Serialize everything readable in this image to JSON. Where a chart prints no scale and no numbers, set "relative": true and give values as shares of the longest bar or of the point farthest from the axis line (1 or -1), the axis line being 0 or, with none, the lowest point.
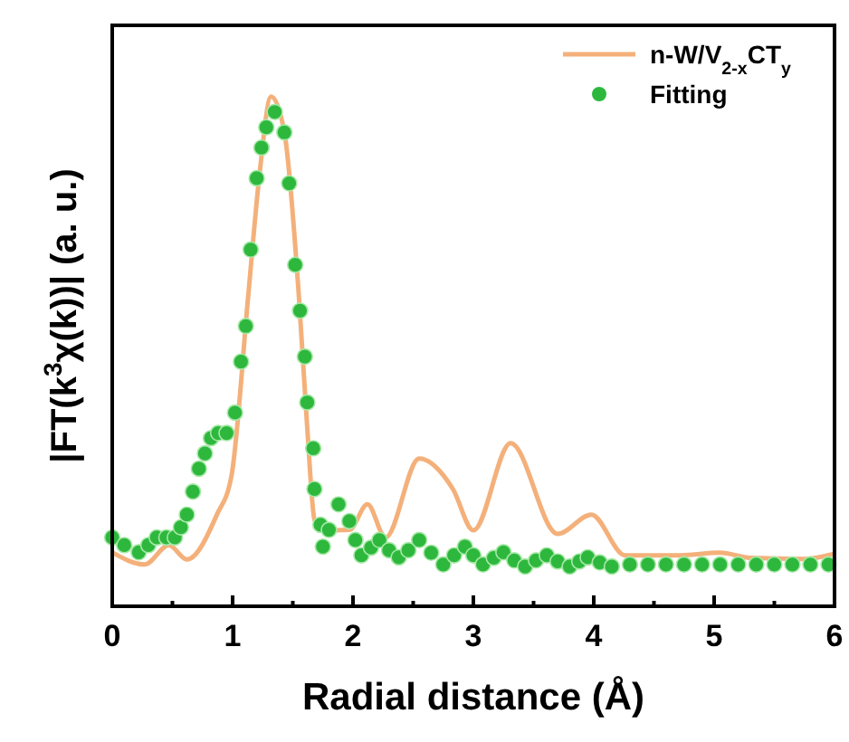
{
  "chart_data": {
    "type": "line",
    "relative": true,
    "xlabel": "Radial distance (Å)",
    "ylabel": "|FT(k$^{3}$χ(k))| (a. u.)",
    "xlim": [
      0,
      6
    ],
    "xticks": [
      0,
      {
        "value": 0.5,
        "label": null
      },
      1,
      {
        "value": 1.5,
        "label": null
      },
      2,
      {
        "value": 2.5,
        "label": null
      },
      3,
      {
        "value": 3.5,
        "label": null
      },
      4,
      {
        "value": 4.5,
        "label": null
      },
      5,
      {
        "value": 5.5,
        "label": null
      },
      6
    ],
    "tick_labels": "x",
    "legend": "top right",
    "series": [
      {
        "name": "n-W/V$_{2-x}$CT$_{y}$",
        "color": "#f4b07a",
        "line_style": "solid",
        "x": [
          0,
          0.27,
          0.47,
          0.62,
          0.87,
          0.99,
          1.13,
          1.22,
          1.32,
          1.43,
          1.55,
          1.62,
          1.68,
          1.74,
          1.97,
          2.12,
          2.27,
          2.55,
          2.83,
          3.0,
          3.31,
          3.7,
          3.98,
          4.26,
          4.71,
          5.05,
          5.3,
          5.75,
          6
        ],
        "values": [
          0.106,
          0.082,
          0.12,
          0.092,
          0.18,
          0.255,
          0.61,
          0.84,
          1.0,
          0.93,
          0.61,
          0.35,
          0.17,
          0.149,
          0.15,
          0.2,
          0.135,
          0.29,
          0.23,
          0.149,
          0.32,
          0.142,
          0.18,
          0.1,
          0.1,
          0.105,
          0.095,
          0.093,
          0.103
        ]
      },
      {
        "name": "Fitting",
        "type": "scatter",
        "color": "#2db83d",
        "marker": "circle",
        "x": [
          0,
          0.1,
          0.22,
          0.3,
          0.37,
          0.45,
          0.52,
          0.57,
          0.62,
          0.67,
          0.72,
          0.77,
          0.82,
          0.88,
          0.95,
          1.02,
          1.07,
          1.11,
          1.15,
          1.2,
          1.24,
          1.28,
          1.35,
          1.43,
          1.47,
          1.52,
          1.56,
          1.6,
          1.62,
          1.67,
          1.68,
          1.73,
          1.75,
          1.8,
          1.88,
          1.97,
          2.02,
          2.07,
          2.15,
          2.22,
          2.3,
          2.38,
          2.46,
          2.55,
          2.65,
          2.75,
          2.84,
          2.93,
          3.0,
          3.08,
          3.17,
          3.25,
          3.34,
          3.43,
          3.52,
          3.61,
          3.7,
          3.8,
          3.88,
          3.95,
          4.05,
          4.15,
          4.3,
          4.45,
          4.6,
          4.75,
          4.9,
          5.05,
          5.2,
          5.35,
          5.5,
          5.65,
          5.8,
          5.95
        ],
        "values": [
          0.135,
          0.12,
          0.106,
          0.12,
          0.135,
          0.135,
          0.135,
          0.155,
          0.18,
          0.225,
          0.27,
          0.3,
          0.33,
          0.34,
          0.34,
          0.38,
          0.48,
          0.55,
          0.7,
          0.84,
          0.9,
          0.94,
          0.97,
          0.93,
          0.83,
          0.67,
          0.58,
          0.49,
          0.4,
          0.31,
          0.23,
          0.16,
          0.117,
          0.15,
          0.2,
          0.167,
          0.13,
          0.1,
          0.115,
          0.13,
          0.11,
          0.096,
          0.11,
          0.13,
          0.105,
          0.082,
          0.1,
          0.117,
          0.1,
          0.082,
          0.095,
          0.106,
          0.09,
          0.078,
          0.09,
          0.1,
          0.088,
          0.078,
          0.088,
          0.096,
          0.086,
          0.078,
          0.082,
          0.082,
          0.082,
          0.082,
          0.082,
          0.082,
          0.082,
          0.082,
          0.082,
          0.082,
          0.082,
          0.082
        ]
      }
    ]
  }
}
